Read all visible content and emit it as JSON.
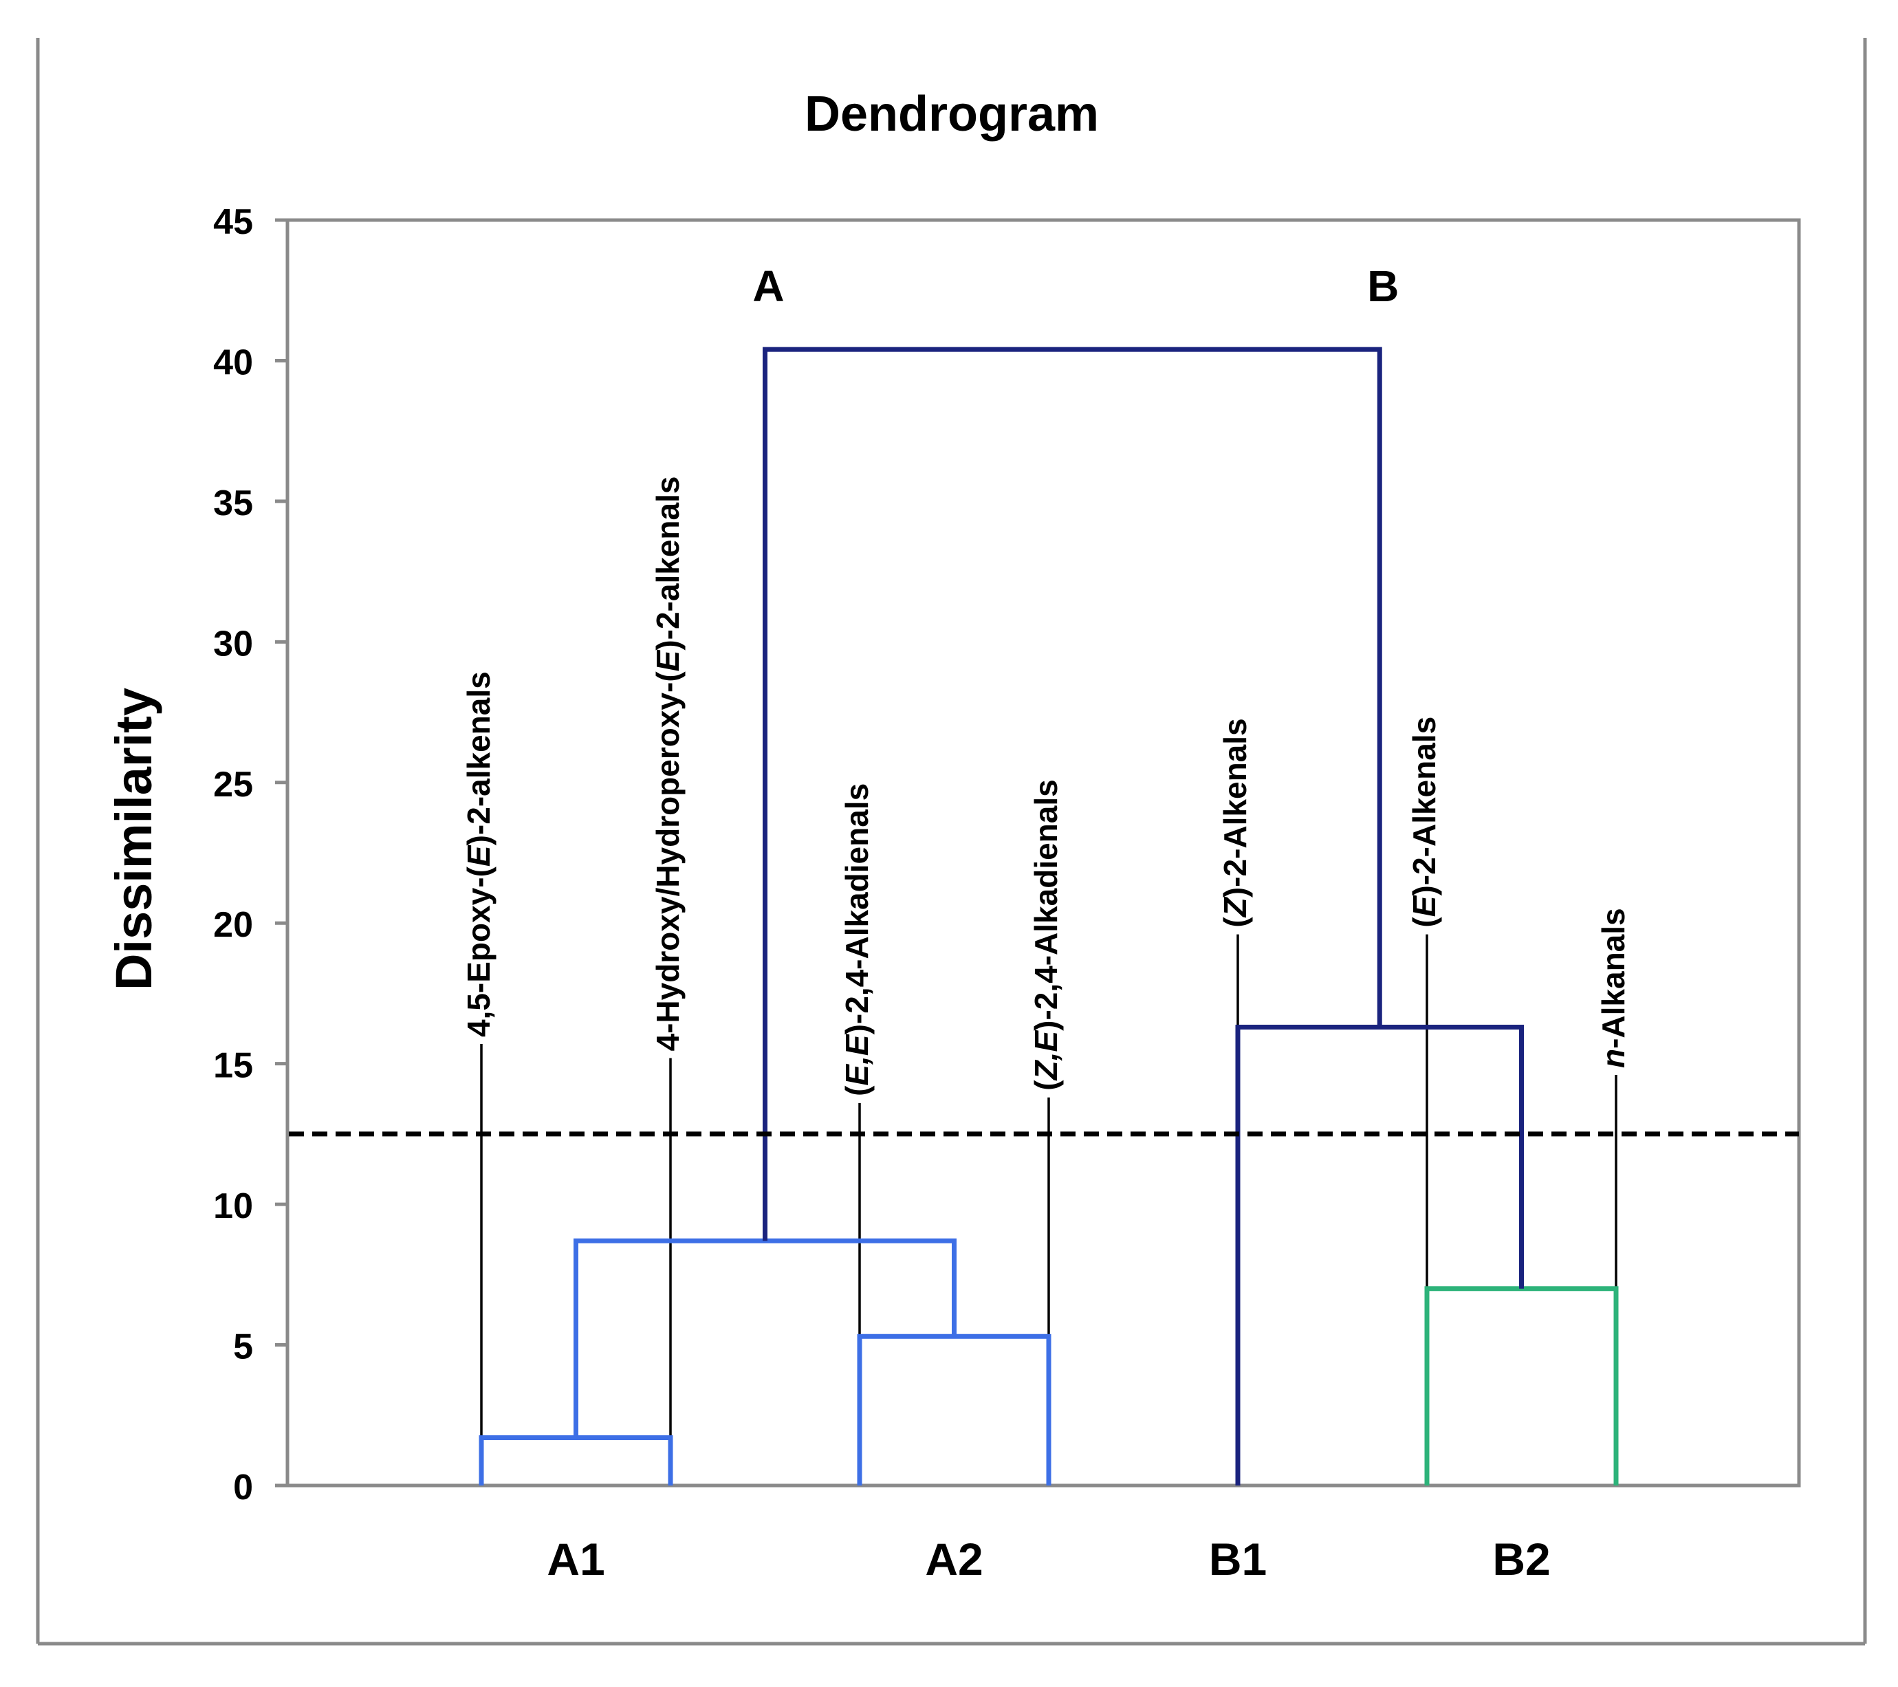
{
  "chart_data": {
    "type": "dendrogram",
    "title": "Dendrogram",
    "ylabel": "Dissimilarity",
    "xlabel": "",
    "ylim": [
      0,
      45
    ],
    "yticks": [
      0,
      5,
      10,
      15,
      20,
      25,
      30,
      35,
      40,
      45
    ],
    "grid": false,
    "cutoff_line": {
      "value": 12.5,
      "style": "dashed"
    },
    "leaves": [
      {
        "id": "L1",
        "parts": [
          {
            "t": "4,5-Epoxy-("
          },
          {
            "t": "E",
            "i": true
          },
          {
            "t": ")-2-alkenals"
          }
        ],
        "label_top": 15.7
      },
      {
        "id": "L2",
        "parts": [
          {
            "t": "4-Hydroxy/Hydroperoxy-("
          },
          {
            "t": "E",
            "i": true
          },
          {
            "t": ")-2-alkenals"
          }
        ],
        "label_top": 15.2
      },
      {
        "id": "L3",
        "parts": [
          {
            "t": "("
          },
          {
            "t": "E,E",
            "i": true
          },
          {
            "t": ")-2,4-Alkadienals"
          }
        ],
        "label_top": 13.6
      },
      {
        "id": "L4",
        "parts": [
          {
            "t": "("
          },
          {
            "t": "Z,E",
            "i": true
          },
          {
            "t": ")-2,4-Alkadienals"
          }
        ],
        "label_top": 13.8
      },
      {
        "id": "L5",
        "parts": [
          {
            "t": "("
          },
          {
            "t": "Z",
            "i": true
          },
          {
            "t": ")-2-Alkenals"
          }
        ],
        "label_top": 19.6
      },
      {
        "id": "L6",
        "parts": [
          {
            "t": "("
          },
          {
            "t": "E",
            "i": true
          },
          {
            "t": ")-2-Alkenals"
          }
        ],
        "label_top": 19.6
      },
      {
        "id": "L7",
        "parts": [
          {
            "t": "n",
            "i": true
          },
          {
            "t": "-Alkanals"
          }
        ],
        "label_top": 14.6
      }
    ],
    "merges": [
      {
        "id": "m1",
        "children": [
          "L1",
          "L2"
        ],
        "height": 1.7,
        "color": "#3d6fe6"
      },
      {
        "id": "m2",
        "children": [
          "L3",
          "L4"
        ],
        "height": 5.3,
        "color": "#3d6fe6"
      },
      {
        "id": "m3",
        "children": [
          "m1",
          "m2"
        ],
        "height": 8.7,
        "color": "#3d6fe6"
      },
      {
        "id": "m4",
        "children": [
          "L6",
          "L7"
        ],
        "height": 7.0,
        "color": "#2db37a"
      },
      {
        "id": "m5",
        "children": [
          "L5",
          "m4"
        ],
        "height": 16.3,
        "color": "#1a237e"
      },
      {
        "id": "m6",
        "children": [
          "m3",
          "m5"
        ],
        "height": 40.4,
        "color": "#1a237e"
      }
    ],
    "leaf_stems": {
      "L5": "#1a237e"
    },
    "cluster_labels": [
      {
        "text": "A",
        "node": "m3"
      },
      {
        "text": "B",
        "node": "m5"
      }
    ],
    "group_labels": [
      {
        "text": "A1",
        "leaves": [
          "L1",
          "L2"
        ]
      },
      {
        "text": "A2",
        "leaves": [
          "L3",
          "L4"
        ]
      },
      {
        "text": "B1",
        "leaves": [
          "L5"
        ]
      },
      {
        "text": "B2",
        "leaves": [
          "L6",
          "L7"
        ]
      }
    ]
  },
  "colors": {
    "frame": "#8a8a8a",
    "axis": "#8a8a8a",
    "text": "#000000",
    "cutoff": "#000000",
    "guide": "#000000"
  }
}
